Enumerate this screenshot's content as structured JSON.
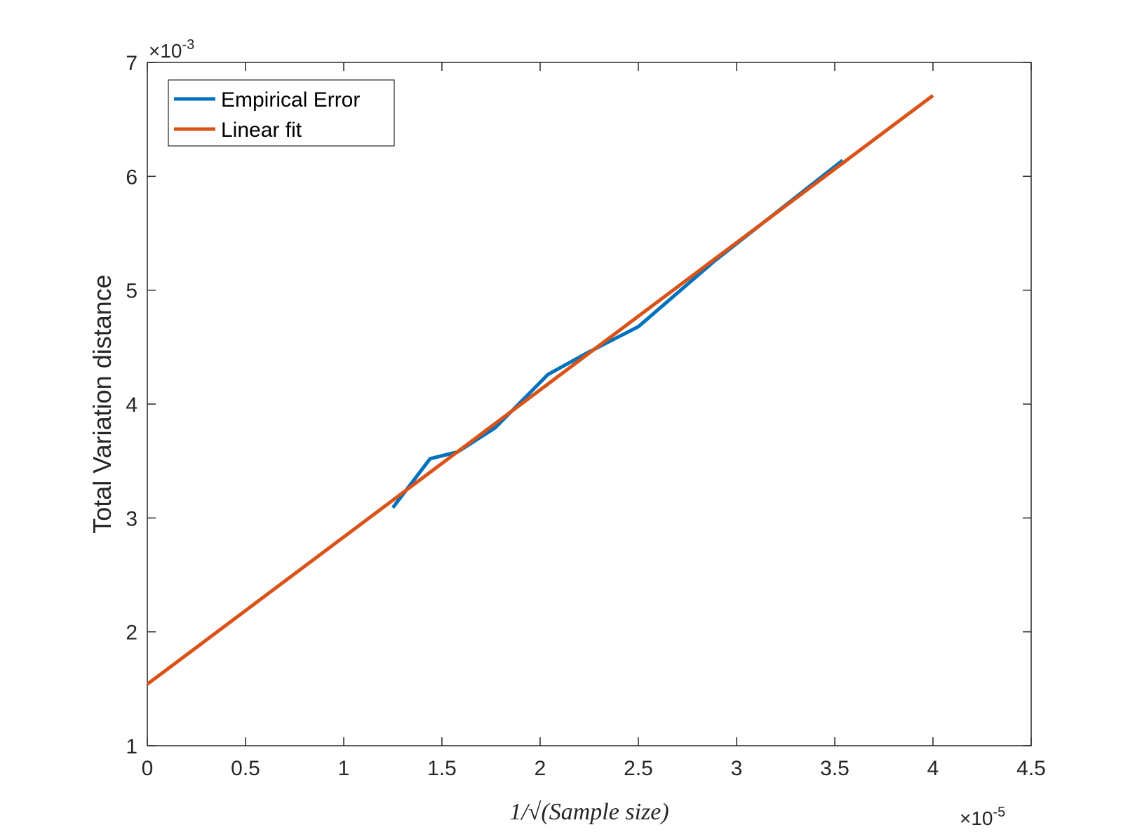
{
  "chart_data": {
    "type": "line",
    "xlabel": "1/√(Sample size)",
    "ylabel": "Total Variation distance",
    "x_exponent": "×10",
    "x_exponent_power": "-5",
    "y_exponent": "×10",
    "y_exponent_power": "-3",
    "xlim": [
      0,
      4.5e-05
    ],
    "ylim": [
      0.001,
      0.007
    ],
    "x_ticks": [
      0,
      5e-06,
      1e-05,
      1.5e-05,
      2e-05,
      2.5e-05,
      3e-05,
      3.5e-05,
      4e-05,
      4.5e-05
    ],
    "x_tick_labels": [
      "0",
      "0.5",
      "1",
      "1.5",
      "2",
      "2.5",
      "3",
      "3.5",
      "4",
      "4.5"
    ],
    "y_ticks": [
      0.001,
      0.002,
      0.003,
      0.004,
      0.005,
      0.006,
      0.007
    ],
    "y_tick_labels": [
      "1",
      "2",
      "3",
      "4",
      "5",
      "6",
      "7"
    ],
    "grid": false,
    "legend_position": "top-left",
    "series": [
      {
        "name": "Empirical Error",
        "color": "#0072BD",
        "x": [
          1.25e-05,
          1.44e-05,
          1.58e-05,
          1.77e-05,
          2.04e-05,
          2.24e-05,
          2.5e-05,
          2.89e-05,
          3.54e-05
        ],
        "y": [
          0.00309,
          0.00352,
          0.00358,
          0.00379,
          0.00426,
          0.00445,
          0.00468,
          0.00526,
          0.00614
        ]
      },
      {
        "name": "Linear fit",
        "color": "#D95319",
        "x": [
          0,
          4e-05
        ],
        "y": [
          0.00154,
          0.00671
        ]
      }
    ]
  }
}
